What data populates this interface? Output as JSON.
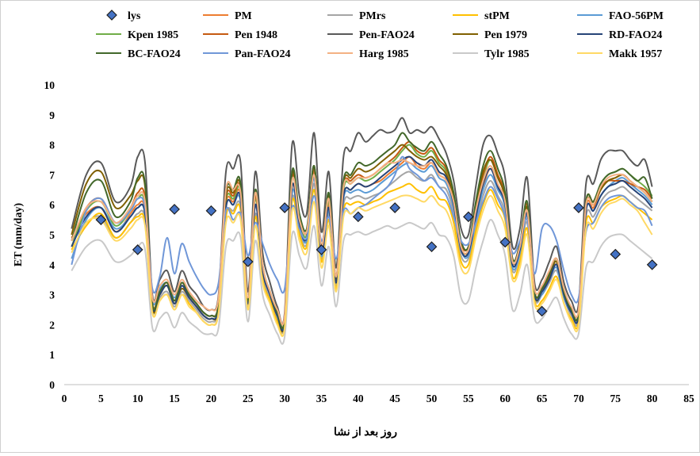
{
  "chart_data": {
    "type": "line",
    "title": "",
    "xlabel": "روز بعد از نشا",
    "ylabel": "ET (mm/day)",
    "xlim": [
      0,
      85
    ],
    "ylim": [
      0,
      10
    ],
    "x_ticks": [
      0,
      5,
      10,
      15,
      20,
      25,
      30,
      35,
      40,
      45,
      50,
      55,
      60,
      65,
      70,
      75,
      80,
      85
    ],
    "y_ticks": [
      0,
      1,
      2,
      3,
      4,
      5,
      6,
      7,
      8,
      9,
      10
    ],
    "grid": false,
    "legend_position": "top",
    "x": [
      1,
      3,
      5,
      7,
      9,
      10,
      11,
      12,
      13,
      14,
      15,
      16,
      17,
      18,
      19,
      20,
      21,
      22,
      23,
      24,
      25,
      26,
      27,
      28,
      29,
      30,
      31,
      32,
      33,
      34,
      35,
      36,
      37,
      38,
      39,
      40,
      41,
      42,
      43,
      44,
      45,
      46,
      47,
      48,
      49,
      50,
      51,
      52,
      53,
      54,
      55,
      56,
      57,
      58,
      59,
      60,
      61,
      62,
      63,
      64,
      65,
      66,
      67,
      68,
      69,
      70,
      71,
      72,
      73,
      74,
      75,
      76,
      77,
      78,
      79,
      80
    ],
    "observed": {
      "name": "lys",
      "color": "#4472c4",
      "marker": "diamond",
      "x": [
        5,
        10,
        15,
        20,
        25,
        30,
        35,
        40,
        45,
        50,
        55,
        60,
        65,
        70,
        75,
        80
      ],
      "y": [
        5.5,
        4.5,
        5.85,
        5.8,
        4.1,
        5.9,
        4.5,
        5.6,
        5.9,
        4.6,
        5.6,
        4.75,
        2.45,
        5.9,
        4.35,
        4.0
      ]
    },
    "series": [
      {
        "name": "PM",
        "color": "#ed7d31",
        "values": [
          4.9,
          5.7,
          5.9,
          5.1,
          5.7,
          6.0,
          5.8,
          2.6,
          3.0,
          3.3,
          2.7,
          3.3,
          2.9,
          2.6,
          2.3,
          2.2,
          2.6,
          6.0,
          6.1,
          6.3,
          2.7,
          6.0,
          3.8,
          3.0,
          2.3,
          2.1,
          6.6,
          5.3,
          4.9,
          7.1,
          4.4,
          6.0,
          3.4,
          6.3,
          6.5,
          6.7,
          6.6,
          6.7,
          6.8,
          7.0,
          7.2,
          7.4,
          7.6,
          7.3,
          7.2,
          7.4,
          7.0,
          6.8,
          6.0,
          4.5,
          4.4,
          5.6,
          6.6,
          7.2,
          6.6,
          6.0,
          4.0,
          4.5,
          5.7,
          3.0,
          3.1,
          3.6,
          4.0,
          3.0,
          2.4,
          2.3,
          5.9,
          5.9,
          6.5,
          6.8,
          6.9,
          7.0,
          6.8,
          6.6,
          6.4,
          6.1
        ]
      },
      {
        "name": "PMrs",
        "color": "#a5a5a5",
        "values": [
          4.8,
          5.4,
          5.6,
          4.9,
          5.4,
          5.7,
          5.5,
          2.5,
          2.9,
          3.1,
          2.6,
          3.1,
          2.8,
          2.5,
          2.2,
          2.1,
          2.5,
          5.6,
          5.8,
          5.9,
          2.6,
          5.7,
          3.6,
          2.9,
          2.2,
          2.0,
          6.2,
          5.1,
          4.7,
          6.7,
          4.2,
          5.7,
          3.3,
          6.0,
          6.2,
          6.3,
          6.2,
          6.3,
          6.4,
          6.6,
          6.8,
          7.0,
          7.1,
          6.9,
          6.8,
          7.0,
          6.6,
          6.5,
          5.7,
          4.3,
          4.2,
          5.3,
          6.3,
          6.8,
          6.3,
          5.7,
          3.8,
          4.3,
          5.4,
          2.9,
          3.0,
          3.4,
          3.8,
          2.9,
          2.3,
          2.2,
          5.6,
          5.6,
          6.1,
          6.4,
          6.5,
          6.6,
          6.4,
          6.2,
          6.0,
          5.8
        ]
      },
      {
        "name": "stPM",
        "color": "#ffc000",
        "values": [
          4.5,
          5.3,
          5.7,
          4.9,
          5.4,
          5.6,
          5.4,
          2.4,
          2.8,
          3.0,
          2.5,
          3.0,
          2.7,
          2.4,
          2.1,
          2.0,
          2.4,
          5.6,
          5.7,
          5.8,
          2.5,
          5.6,
          3.5,
          2.8,
          2.1,
          1.9,
          6.1,
          5.0,
          4.6,
          6.5,
          4.1,
          5.5,
          3.2,
          5.8,
          6.0,
          6.1,
          6.0,
          6.1,
          6.2,
          6.4,
          6.5,
          6.6,
          6.7,
          6.5,
          6.4,
          6.6,
          6.2,
          6.1,
          5.4,
          4.1,
          4.0,
          5.1,
          6.0,
          6.5,
          6.0,
          5.5,
          3.6,
          4.1,
          5.2,
          2.8,
          2.8,
          3.2,
          3.6,
          2.7,
          2.2,
          2.1,
          5.4,
          5.4,
          5.9,
          6.1,
          6.2,
          6.3,
          6.1,
          5.9,
          5.7,
          5.5
        ]
      },
      {
        "name": "FAO-56PM",
        "color": "#5b9bd5",
        "values": [
          4.2,
          5.5,
          5.9,
          5.2,
          5.6,
          5.9,
          5.7,
          2.8,
          3.2,
          3.4,
          2.9,
          3.4,
          3.0,
          2.7,
          2.4,
          2.3,
          2.7,
          5.9,
          6.0,
          6.1,
          2.8,
          6.0,
          3.8,
          3.0,
          2.3,
          2.1,
          6.4,
          5.3,
          4.8,
          6.9,
          4.3,
          5.8,
          3.4,
          6.2,
          6.4,
          6.5,
          6.4,
          6.5,
          6.7,
          6.9,
          7.1,
          7.3,
          7.4,
          7.2,
          7.1,
          7.3,
          6.9,
          6.7,
          5.9,
          4.5,
          4.3,
          5.5,
          6.5,
          7.0,
          6.5,
          5.9,
          3.9,
          4.4,
          5.6,
          3.0,
          3.0,
          3.5,
          3.9,
          2.9,
          2.4,
          2.3,
          5.8,
          5.8,
          6.3,
          6.6,
          6.8,
          6.9,
          6.7,
          6.5,
          6.3,
          6.0
        ]
      },
      {
        "name": "Kpen 1985",
        "color": "#70ad47",
        "values": [
          4.6,
          5.8,
          6.1,
          5.3,
          5.8,
          6.2,
          6.0,
          2.7,
          3.1,
          3.4,
          2.8,
          3.4,
          3.0,
          2.7,
          2.4,
          2.3,
          2.7,
          6.1,
          6.2,
          6.4,
          2.8,
          6.2,
          3.9,
          3.1,
          2.4,
          2.2,
          6.8,
          5.5,
          5.0,
          7.2,
          4.5,
          6.1,
          3.5,
          6.5,
          6.7,
          6.9,
          6.8,
          6.9,
          7.1,
          7.3,
          7.5,
          7.8,
          8.0,
          7.7,
          7.6,
          7.8,
          7.4,
          7.1,
          6.2,
          4.6,
          4.5,
          5.8,
          6.9,
          7.5,
          6.9,
          6.2,
          4.1,
          4.6,
          5.9,
          3.1,
          3.2,
          3.7,
          4.1,
          3.1,
          2.5,
          2.4,
          6.1,
          6.1,
          6.7,
          7.0,
          7.1,
          7.2,
          7.0,
          6.8,
          6.6,
          6.3
        ]
      },
      {
        "name": "Pen 1948",
        "color": "#c55a11",
        "values": [
          4.8,
          5.9,
          6.2,
          5.4,
          5.9,
          6.4,
          6.2,
          2.7,
          3.1,
          3.4,
          2.8,
          3.4,
          3.0,
          2.7,
          2.4,
          2.3,
          2.7,
          6.2,
          6.3,
          6.5,
          2.8,
          6.3,
          3.9,
          3.1,
          2.4,
          2.2,
          6.9,
          5.6,
          5.1,
          7.2,
          4.6,
          6.2,
          3.5,
          6.6,
          6.8,
          7.0,
          6.9,
          7.0,
          7.2,
          7.4,
          7.6,
          7.9,
          8.1,
          7.8,
          7.7,
          7.9,
          7.5,
          7.2,
          6.3,
          4.7,
          4.6,
          5.9,
          7.0,
          7.6,
          7.0,
          6.3,
          4.2,
          4.7,
          6.0,
          3.1,
          3.2,
          3.7,
          4.2,
          3.1,
          2.5,
          2.4,
          6.1,
          6.1,
          6.6,
          6.8,
          6.8,
          6.8,
          6.7,
          6.6,
          6.5,
          6.2
        ]
      },
      {
        "name": "Pen-FAO24",
        "color": "#595959",
        "values": [
          5.2,
          7.0,
          7.4,
          6.1,
          6.6,
          7.6,
          7.4,
          3.0,
          3.5,
          3.8,
          3.1,
          3.8,
          3.3,
          3.0,
          2.6,
          2.5,
          3.0,
          7.1,
          7.2,
          7.4,
          3.1,
          7.1,
          4.4,
          3.4,
          2.6,
          2.4,
          8.0,
          6.3,
          5.7,
          8.4,
          5.1,
          7.1,
          3.9,
          7.6,
          7.8,
          8.4,
          8.1,
          8.3,
          8.5,
          8.4,
          8.5,
          8.9,
          8.4,
          8.5,
          8.4,
          8.6,
          8.2,
          7.7,
          6.8,
          5.2,
          5.0,
          6.6,
          8.0,
          8.3,
          7.7,
          6.9,
          4.6,
          5.2,
          6.9,
          3.4,
          3.5,
          4.1,
          4.6,
          3.4,
          2.8,
          2.7,
          6.7,
          6.7,
          7.5,
          7.8,
          7.8,
          7.8,
          7.5,
          7.3,
          7.5,
          6.6
        ]
      },
      {
        "name": "Pen 1979",
        "color": "#806000",
        "values": [
          5.0,
          6.7,
          7.1,
          5.9,
          6.3,
          6.8,
          6.6,
          2.6,
          3.0,
          3.3,
          2.7,
          3.2,
          2.9,
          2.6,
          2.3,
          2.2,
          2.6,
          6.3,
          6.4,
          6.6,
          2.8,
          6.4,
          3.9,
          3.0,
          2.3,
          2.1,
          7.0,
          5.6,
          5.1,
          7.3,
          4.6,
          6.3,
          3.5,
          6.7,
          6.9,
          7.2,
          7.1,
          7.2,
          7.4,
          7.6,
          7.8,
          8.0,
          7.8,
          7.6,
          7.5,
          7.6,
          7.3,
          7.0,
          6.2,
          4.6,
          4.5,
          5.9,
          7.1,
          7.5,
          6.9,
          6.2,
          4.1,
          4.6,
          5.9,
          3.0,
          3.1,
          3.6,
          4.1,
          3.0,
          2.5,
          2.4,
          6.0,
          6.0,
          6.5,
          6.8,
          6.9,
          7.0,
          6.8,
          6.6,
          6.4,
          6.1
        ]
      },
      {
        "name": "RD-FAO24",
        "color": "#264478",
        "values": [
          4.6,
          5.6,
          5.9,
          5.1,
          5.6,
          5.9,
          5.7,
          2.6,
          3.0,
          3.3,
          2.7,
          3.3,
          2.9,
          2.6,
          2.3,
          2.2,
          2.6,
          5.9,
          6.0,
          6.2,
          2.7,
          6.0,
          3.8,
          3.0,
          2.3,
          2.1,
          6.6,
          5.3,
          4.9,
          7.0,
          4.4,
          5.9,
          3.4,
          6.3,
          6.5,
          6.7,
          6.6,
          6.7,
          6.9,
          7.1,
          7.3,
          7.5,
          7.6,
          7.4,
          7.3,
          7.5,
          7.1,
          6.9,
          6.0,
          4.5,
          4.4,
          5.6,
          6.7,
          7.2,
          6.6,
          6.0,
          4.0,
          4.5,
          5.7,
          3.0,
          3.1,
          3.5,
          4.0,
          3.0,
          2.4,
          2.3,
          5.8,
          5.8,
          6.3,
          6.6,
          6.7,
          6.8,
          6.6,
          6.4,
          6.2,
          5.9
        ]
      },
      {
        "name": "BC-FAO24",
        "color": "#43682b",
        "values": [
          4.8,
          6.4,
          6.8,
          5.6,
          6.1,
          6.9,
          6.7,
          2.7,
          3.1,
          3.4,
          2.8,
          3.4,
          3.0,
          2.7,
          2.4,
          2.3,
          2.7,
          6.4,
          6.5,
          6.7,
          2.8,
          6.5,
          4.0,
          3.1,
          2.4,
          2.2,
          7.1,
          5.7,
          5.2,
          7.3,
          4.6,
          6.4,
          3.6,
          6.8,
          7.0,
          7.4,
          7.3,
          7.4,
          7.6,
          7.8,
          8.0,
          8.4,
          8.1,
          7.9,
          7.8,
          8.1,
          7.7,
          7.3,
          6.4,
          4.8,
          4.6,
          6.1,
          7.3,
          7.8,
          7.2,
          6.4,
          4.2,
          4.7,
          6.1,
          3.1,
          3.2,
          3.7,
          4.2,
          3.1,
          2.5,
          2.4,
          6.1,
          6.1,
          6.7,
          7.0,
          7.1,
          7.2,
          7.0,
          6.8,
          6.9,
          6.2
        ]
      },
      {
        "name": "Pan-FAO24",
        "color": "#7097d8",
        "values": [
          4.0,
          5.8,
          6.2,
          5.4,
          5.8,
          6.2,
          5.9,
          3.2,
          3.6,
          4.9,
          3.7,
          4.7,
          4.1,
          3.6,
          3.2,
          3.0,
          3.4,
          5.8,
          5.5,
          5.7,
          4.3,
          5.4,
          4.7,
          4.0,
          3.5,
          3.2,
          5.9,
          5.2,
          4.9,
          6.3,
          4.8,
          5.6,
          4.2,
          5.8,
          5.7,
          5.9,
          6.0,
          6.2,
          6.4,
          6.6,
          7.0,
          7.6,
          7.2,
          7.0,
          6.8,
          6.9,
          6.6,
          6.3,
          5.6,
          4.8,
          4.7,
          5.4,
          6.1,
          6.6,
          6.2,
          5.6,
          4.4,
          4.8,
          5.5,
          3.7,
          5.2,
          5.3,
          4.8,
          3.8,
          3.0,
          2.9,
          5.1,
          5.4,
          5.9,
          6.2,
          6.3,
          6.3,
          6.1,
          5.9,
          5.8,
          5.3
        ]
      },
      {
        "name": "Harg 1985",
        "color": "#f4b183",
        "values": [
          4.8,
          5.9,
          6.1,
          5.4,
          5.9,
          6.3,
          6.1,
          2.9,
          3.3,
          3.5,
          3.0,
          3.5,
          3.1,
          2.8,
          2.6,
          2.5,
          2.9,
          6.5,
          6.5,
          6.4,
          2.9,
          6.4,
          4.0,
          3.1,
          2.5,
          2.3,
          6.8,
          5.5,
          5.1,
          7.0,
          4.6,
          6.2,
          3.6,
          6.6,
          6.7,
          6.9,
          6.9,
          7.0,
          7.2,
          7.4,
          7.4,
          7.5,
          7.4,
          7.3,
          7.3,
          7.4,
          7.0,
          6.8,
          6.1,
          4.6,
          4.5,
          5.8,
          6.8,
          7.3,
          6.7,
          6.1,
          4.1,
          4.6,
          5.8,
          3.2,
          3.3,
          3.8,
          4.2,
          3.2,
          2.6,
          2.5,
          6.0,
          6.0,
          6.6,
          6.9,
          7.0,
          7.0,
          6.8,
          6.6,
          6.4,
          6.1
        ]
      },
      {
        "name": "Tylr 1985",
        "color": "#c9c9c9",
        "values": [
          3.8,
          4.6,
          4.8,
          4.1,
          4.3,
          4.6,
          4.5,
          1.9,
          2.2,
          2.4,
          1.9,
          2.4,
          2.1,
          1.9,
          1.7,
          1.7,
          1.9,
          4.6,
          4.8,
          4.9,
          2.1,
          4.8,
          3.0,
          2.3,
          1.7,
          1.6,
          5.0,
          4.3,
          3.9,
          5.3,
          3.3,
          4.6,
          2.6,
          4.8,
          5.0,
          5.1,
          5.0,
          5.1,
          5.2,
          5.3,
          5.2,
          5.3,
          5.4,
          5.3,
          5.2,
          5.4,
          5.0,
          4.9,
          4.3,
          2.9,
          2.8,
          3.9,
          4.8,
          5.5,
          5.0,
          4.3,
          2.5,
          3.0,
          4.0,
          2.2,
          2.2,
          2.6,
          2.9,
          2.2,
          1.7,
          1.7,
          3.9,
          4.1,
          4.6,
          4.9,
          5.0,
          5.0,
          4.8,
          4.6,
          4.4,
          4.2
        ]
      },
      {
        "name": "Makk 1957",
        "color": "#ffd965",
        "values": [
          4.4,
          5.4,
          5.5,
          4.8,
          5.2,
          5.5,
          5.3,
          2.4,
          2.8,
          3.0,
          2.5,
          3.0,
          2.6,
          2.4,
          2.1,
          2.0,
          2.4,
          5.4,
          5.4,
          5.5,
          2.5,
          5.3,
          3.4,
          2.7,
          2.0,
          1.9,
          5.8,
          4.8,
          4.4,
          6.1,
          3.9,
          5.3,
          3.1,
          5.6,
          5.7,
          5.9,
          5.8,
          5.9,
          6.0,
          6.1,
          6.2,
          6.3,
          6.3,
          6.2,
          6.1,
          6.3,
          6.0,
          5.8,
          5.1,
          3.9,
          3.8,
          4.9,
          5.8,
          6.3,
          5.8,
          5.2,
          3.5,
          3.9,
          5.0,
          2.7,
          2.7,
          3.1,
          3.5,
          2.7,
          2.1,
          2.0,
          5.2,
          5.2,
          5.7,
          6.0,
          6.1,
          6.2,
          6.0,
          5.8,
          5.4,
          5.0
        ]
      }
    ]
  }
}
